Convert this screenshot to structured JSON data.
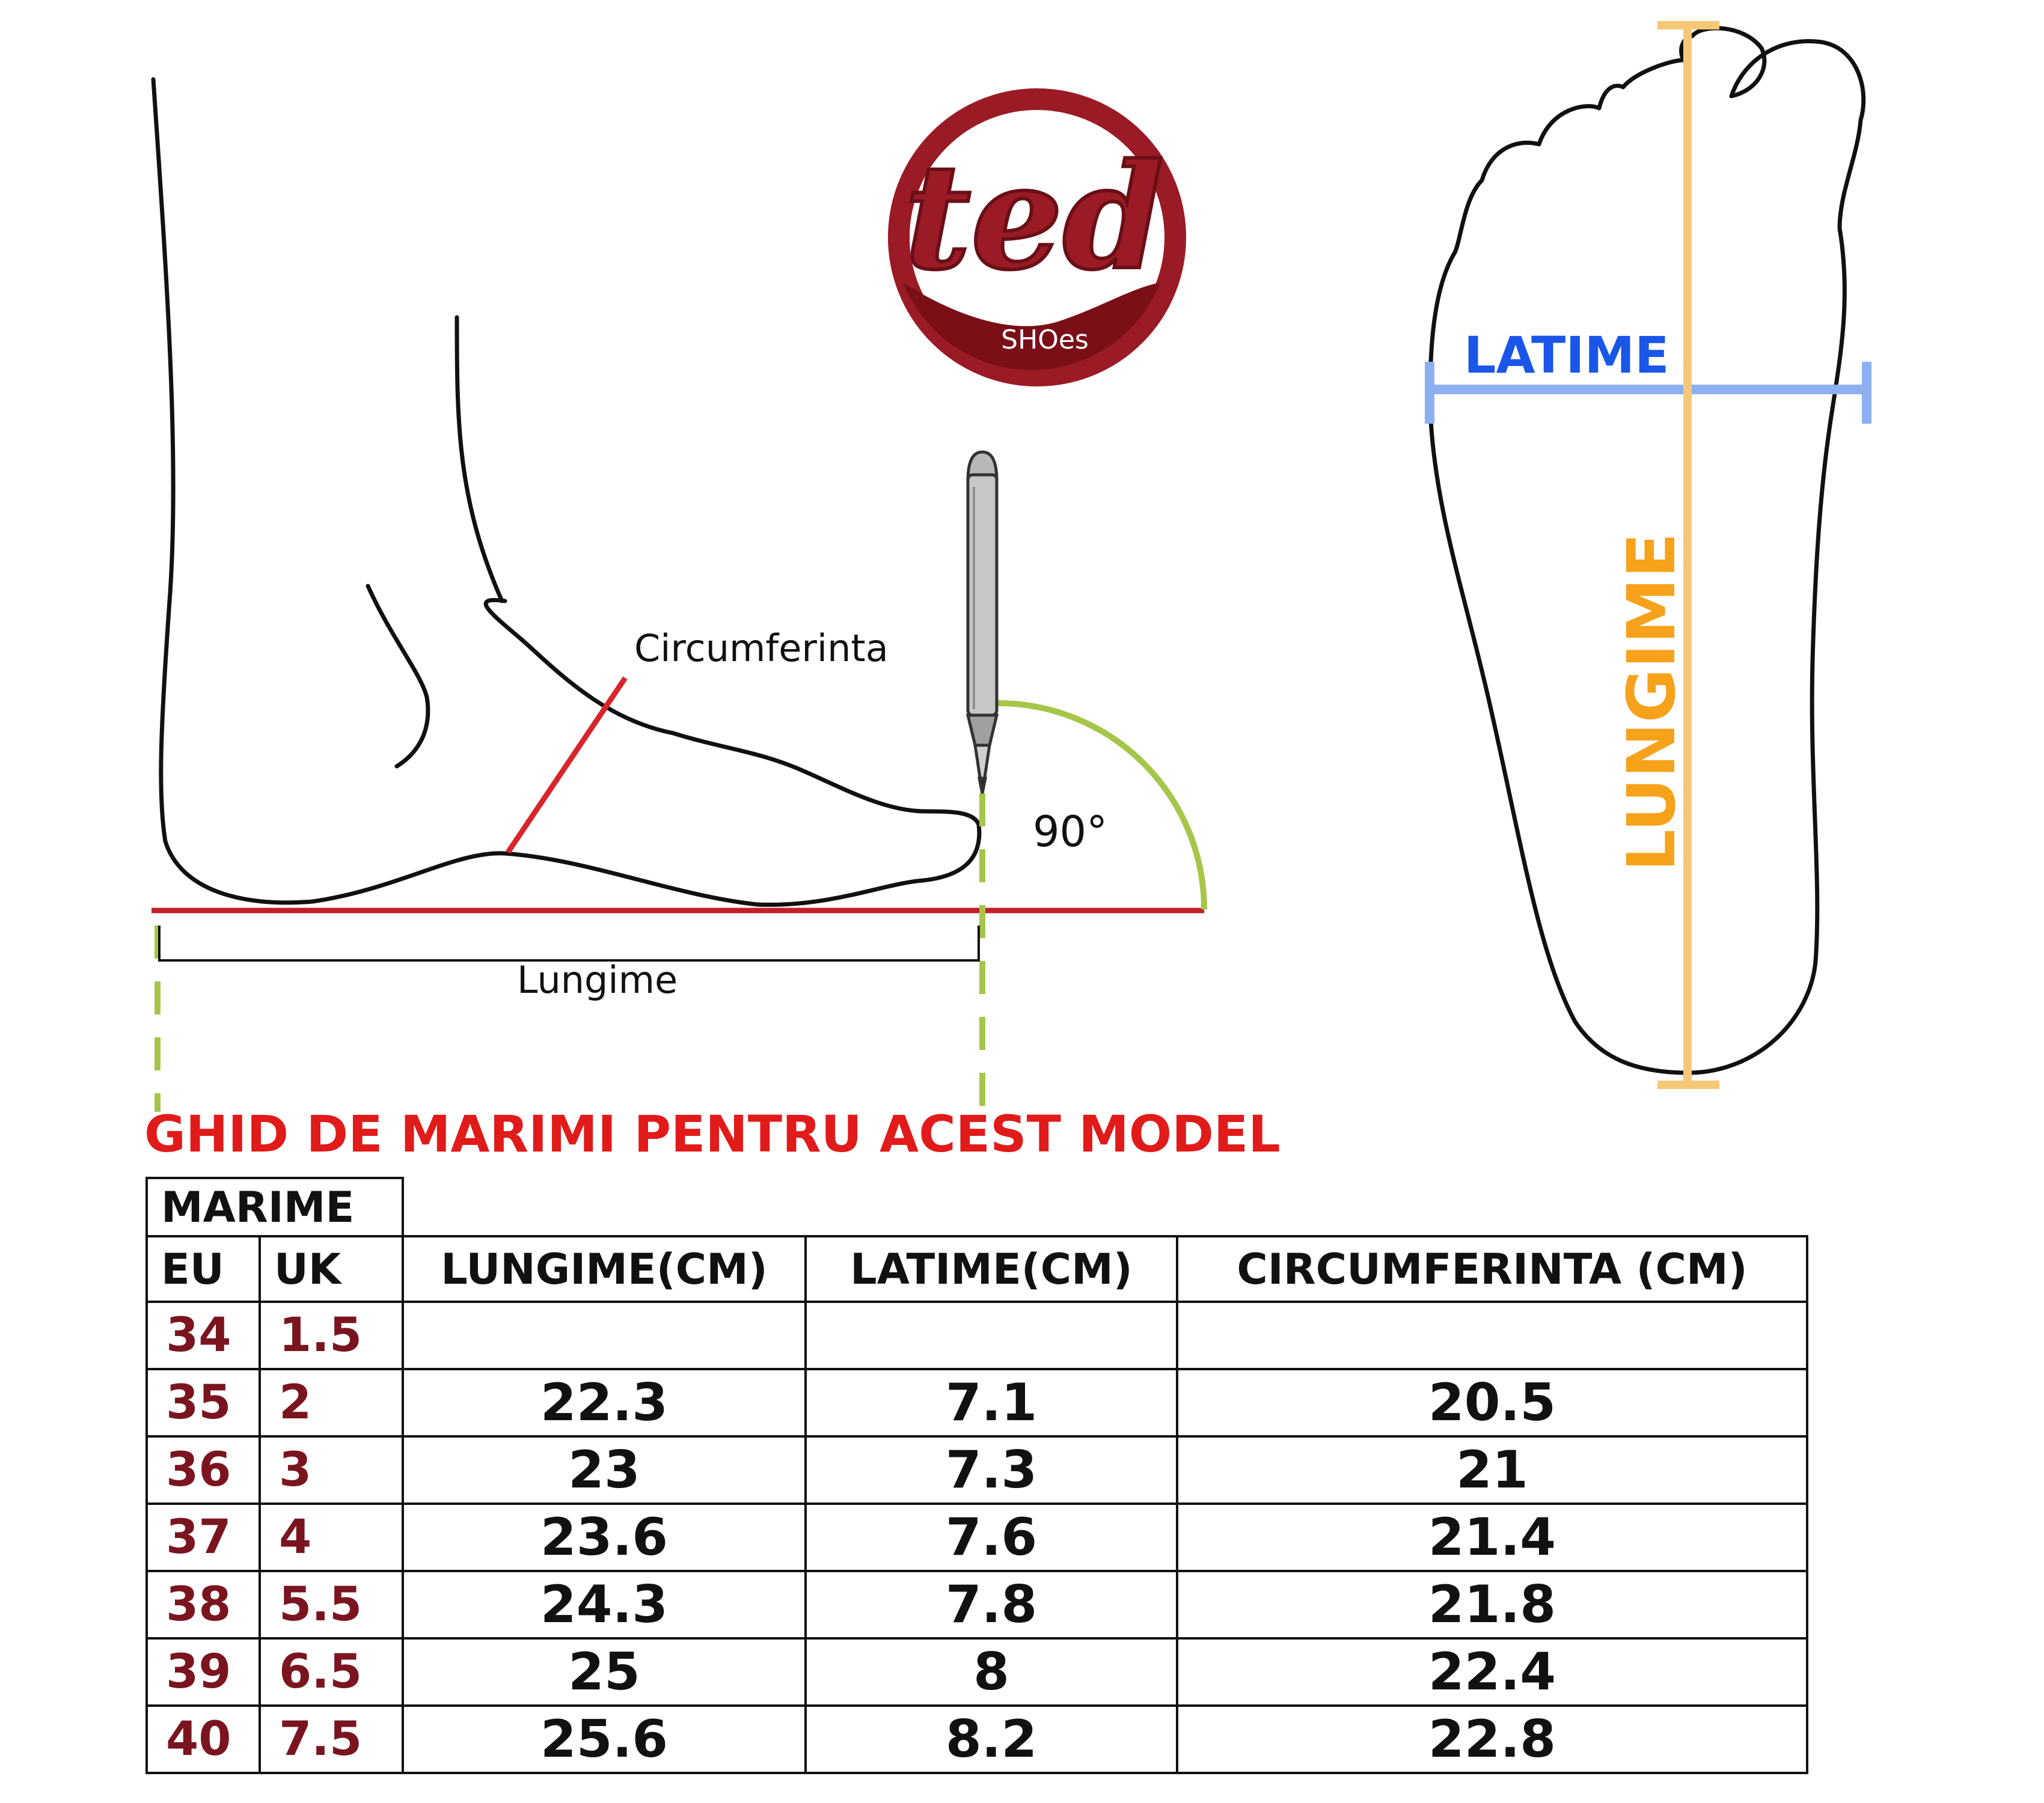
{
  "brand": {
    "logo_text": "ted",
    "logo_subtext": "SHOes",
    "primary_color": "#9a1b25",
    "dark_color": "#6b0f17"
  },
  "side_diagram": {
    "circumference_label": "Circumferinta",
    "angle_label": "90°",
    "length_label": "Lungime",
    "icons": [
      "foot-side-outline",
      "pencil-icon",
      "right-angle-arc"
    ]
  },
  "top_diagram": {
    "width_label": "LATIME",
    "length_label": "LUNGIME",
    "width_color": "#1a56e8",
    "length_color": "#f7a21b",
    "icons": [
      "foot-sole-outline"
    ]
  },
  "guide_title": "GHID DE MARIMI PENTRU ACEST MODEL",
  "table": {
    "group_header": "MARIME",
    "headers": {
      "eu": "EU",
      "uk": "UK",
      "length": "LUNGIME(CM)",
      "width": "LATIME(CM)",
      "circumference": "CIRCUMFERINTA  (CM)"
    },
    "rows": [
      {
        "eu": "34",
        "uk": "1.5",
        "length": "",
        "width": "",
        "circumference": ""
      },
      {
        "eu": "35",
        "uk": "2",
        "length": "22.3",
        "width": "7.1",
        "circumference": "20.5"
      },
      {
        "eu": "36",
        "uk": "3",
        "length": "23",
        "width": "7.3",
        "circumference": "21"
      },
      {
        "eu": "37",
        "uk": "4",
        "length": "23.6",
        "width": "7.6",
        "circumference": "21.4"
      },
      {
        "eu": "38",
        "uk": "5.5",
        "length": "24.3",
        "width": "7.8",
        "circumference": "21.8"
      },
      {
        "eu": "39",
        "uk": "6.5",
        "length": "25",
        "width": "8",
        "circumference": "22.4"
      },
      {
        "eu": "40",
        "uk": "7.5",
        "length": "25.6",
        "width": "8.2",
        "circumference": "22.8"
      }
    ],
    "size_color": "#7a1520"
  }
}
